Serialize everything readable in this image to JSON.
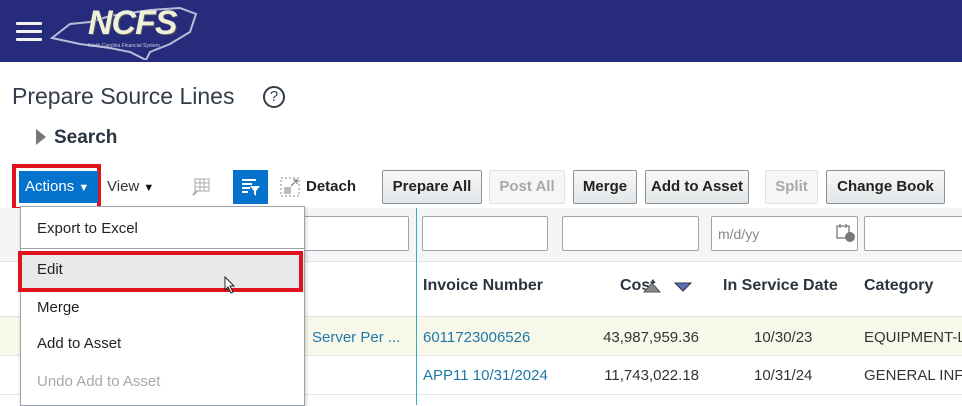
{
  "header": {
    "logo_text": "NCFS",
    "logo_subtitle": "North Carolina Financial System",
    "bg_color": "#272b7b"
  },
  "page": {
    "title": "Prepare Source Lines",
    "help_icon": "?",
    "search_label": "Search"
  },
  "toolbar": {
    "actions": "Actions",
    "view": "View",
    "detach": "Detach",
    "buttons": [
      {
        "label": "Prepare All",
        "enabled": true
      },
      {
        "label": "Post All",
        "enabled": false
      },
      {
        "label": "Merge",
        "enabled": true
      },
      {
        "label": "Add to Asset",
        "enabled": true
      },
      {
        "label": "Split",
        "enabled": false
      },
      {
        "label": "Change Book",
        "enabled": true
      }
    ]
  },
  "filters": {
    "date_placeholder": "m/d/yy"
  },
  "table": {
    "columns": [
      "Invoice Number",
      "Cost",
      "In Service Date",
      "Category"
    ],
    "rows": [
      {
        "description": "Server Per ...",
        "invoice": "6011723006526",
        "cost": "43,987,959.36",
        "date": "10/30/23",
        "category": "EQUIPMENT-L"
      },
      {
        "description": "",
        "invoice": "APP11 10/31/2024",
        "cost": "11,743,022.18",
        "date": "10/31/24",
        "category": "GENERAL INF"
      }
    ]
  },
  "menu": {
    "items": [
      {
        "label": "Export to Excel",
        "enabled": true
      },
      {
        "label": "Edit",
        "enabled": true,
        "highlighted": true
      },
      {
        "label": "Merge",
        "enabled": true
      },
      {
        "label": "Add to Asset",
        "enabled": true
      },
      {
        "label": "Undo Add to Asset",
        "enabled": false
      }
    ]
  },
  "colors": {
    "accent": "#0572ce",
    "highlight": "#e0141e",
    "link": "#1f78a6",
    "selected_row": "#f8f8ea"
  }
}
